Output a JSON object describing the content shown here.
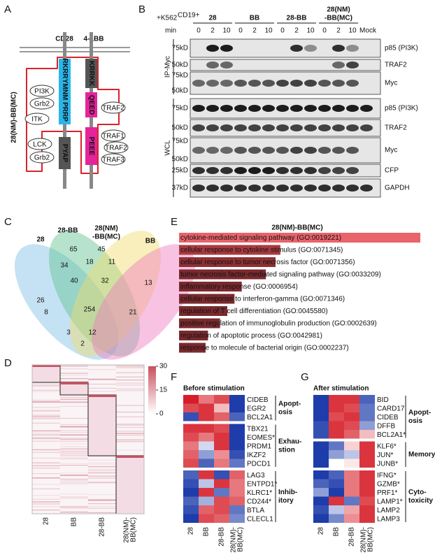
{
  "A": {
    "letter": "A",
    "receptors": [
      "CD28",
      "4-1BB"
    ],
    "construct": "28(NM)-BB(MC)",
    "cd28_motifs": [
      "RKRR",
      "YMNM",
      "PRRP",
      "PYAP"
    ],
    "bb_motifs": [
      "KRRKK",
      "QEED",
      "PEEE"
    ],
    "binders": [
      "PI3K",
      "Grb2",
      "ITK",
      "LCK",
      "Grb2",
      "TRAF2",
      "TRAF1",
      "TRAF2",
      "TRAF3"
    ]
  },
  "B": {
    "letter": "B",
    "stimulus": "+K562",
    "stimulus_sup": "CD19+",
    "groups": [
      [
        "28"
      ],
      [
        "BB"
      ],
      [
        "28-BB"
      ],
      [
        "28(NM)",
        "-BB(MC)"
      ]
    ],
    "time_label": "min",
    "times": [
      "0",
      "2",
      "10"
    ],
    "mock": "Mock",
    "sections": [
      "IP-Myc",
      "WCL"
    ],
    "rows": [
      {
        "markers": [
          "75kD"
        ],
        "label": "p85 (PI3K)"
      },
      {
        "markers": [
          "50kD"
        ],
        "label": "TRAF2"
      },
      {
        "markers": [
          "75kD",
          "50kD"
        ],
        "label": "Myc"
      },
      {
        "markers": [
          "75kD"
        ],
        "label": "p85 (PI3K)"
      },
      {
        "markers": [
          "50kD"
        ],
        "label": "TRAF2"
      },
      {
        "markers": [
          "75kD",
          "50kD"
        ],
        "label": "Myc"
      },
      {
        "markers": [
          "25kD"
        ],
        "label": "CFP"
      },
      {
        "markers": [
          "37kD"
        ],
        "label": "GAPDH"
      }
    ]
  },
  "C": {
    "letter": "C",
    "sets": [
      [
        "28"
      ],
      [
        "28-BB"
      ],
      [
        "28(NM)",
        "-BB(MC)"
      ],
      [
        "BB"
      ]
    ],
    "counts": [
      26,
      65,
      45,
      13,
      34,
      18,
      11,
      40,
      32,
      8,
      254,
      21,
      3,
      12,
      2
    ]
  },
  "D": {
    "letter": "D",
    "scale_ticks": [
      30,
      15,
      0
    ],
    "columns": [
      [
        "28"
      ],
      [
        "BB"
      ],
      [
        "28-BB"
      ],
      [
        "28(NM)-",
        "BB(MC)"
      ]
    ]
  },
  "E": {
    "letter": "E",
    "title": "28(NM)-BB(MC)",
    "terms": [
      "cytokine-mediated signaling pathway (GO:0019221)",
      "cellular response to cytokine stimulus (GO:0071345)",
      "cellular response to tumor necrosis factor (GO:0071356)",
      "tumor necrosis factor-mediated signaling pathway (GO:0033209)",
      "inflammatory response (GO:0006954)",
      "cellular response to interferon-gamma (GO:0071346)",
      "regulation of T cell differentiation (GO:0045580)",
      "positive regulation of immunoglobulin production (GO:0002639)",
      "regulation of apoptotic process (GO:0042981)",
      "response to molecule of bacterial origin (GO:0002237)"
    ],
    "bar_lengths": [
      100,
      42,
      40,
      36,
      26,
      23,
      20,
      17,
      12,
      11
    ]
  },
  "F": {
    "letter": "F",
    "title": "Before stimulation",
    "columns": [
      [
        "28"
      ],
      [
        "BB"
      ],
      [
        "28-BB"
      ],
      [
        "28(NM)-",
        "BB(MC)"
      ]
    ],
    "groups": [
      {
        "label": [
          "Apopt-",
          "osis"
        ],
        "genes": [
          "CIDEB",
          "EGR2",
          "BCL2A1"
        ],
        "values": [
          [
            1,
            0.6,
            0.8,
            -1
          ],
          [
            0.8,
            0.9,
            0.3,
            -1
          ],
          [
            -0.9,
            0.9,
            0.7,
            -0.8
          ]
        ]
      },
      {
        "label": [
          "Exhau-",
          "stion"
        ],
        "genes": [
          "TBX21",
          "EOMES*",
          "PRDM1",
          "IKZF2",
          "PDCD1"
        ],
        "values": [
          [
            0.9,
            0.9,
            0.8,
            -1
          ],
          [
            0.8,
            0.6,
            0.9,
            -1
          ],
          [
            0.6,
            -0.2,
            0.9,
            -1
          ],
          [
            0.7,
            -0.5,
            0.5,
            -0.9
          ],
          [
            0.8,
            -0.8,
            0.6,
            -0.7
          ]
        ]
      },
      {
        "label": [
          "Inhib-",
          "itory"
        ],
        "genes": [
          "LAG3",
          "ENTPD1*",
          "KLRC1*",
          "CD244*",
          "BTLA",
          "CLECL1"
        ],
        "values": [
          [
            -0.8,
            0.9,
            -0.9,
            0.7
          ],
          [
            -0.9,
            -0.3,
            0.9,
            0.6
          ],
          [
            -1,
            0.9,
            -0.7,
            0.6
          ],
          [
            -0.8,
            -0.4,
            0.8,
            0.7
          ],
          [
            -0.9,
            0.7,
            0.8,
            -0.7
          ],
          [
            -1,
            0.8,
            0.7,
            -0.6
          ]
        ]
      }
    ]
  },
  "G": {
    "letter": "G",
    "title": "After stimulation",
    "columns": [
      [
        "28"
      ],
      [
        "BB"
      ],
      [
        "28-BB"
      ],
      [
        "28(NM)-",
        "BB(MC)"
      ]
    ],
    "groups": [
      {
        "label": [
          "Apopt-",
          "osis"
        ],
        "genes": [
          "BID",
          "CARD17",
          "CIDEB",
          "DFFB",
          "BCL2A1*"
        ],
        "values": [
          [
            -1,
            0.9,
            0.9,
            -0.8
          ],
          [
            -1,
            0.9,
            0.8,
            -0.7
          ],
          [
            -1,
            0.8,
            0.9,
            -0.7
          ],
          [
            -0.9,
            0.9,
            0.8,
            -0.5
          ],
          [
            -0.9,
            0.9,
            0.7,
            0.3
          ]
        ]
      },
      {
        "label": [
          "Memory"
        ],
        "genes": [
          "KLF6*",
          "JUN*",
          "JUNB*"
        ],
        "values": [
          [
            -1,
            -0.7,
            0.2,
            0.9
          ],
          [
            -1,
            -0.5,
            -0.3,
            0.9
          ],
          [
            -1,
            0,
            0.1,
            0.9
          ]
        ]
      },
      {
        "label": [
          "Cyto-",
          "toxicity"
        ],
        "genes": [
          "IFNG*",
          "GZMB*",
          "PRF1*",
          "LAMP1*",
          "LAMP2",
          "LAMP3"
        ],
        "values": [
          [
            -1,
            -0.8,
            0.6,
            0.9
          ],
          [
            -0.8,
            -0.9,
            0.6,
            0.9
          ],
          [
            -0.5,
            -1,
            0.6,
            0.9
          ],
          [
            -1,
            0.9,
            -0.7,
            0.8
          ],
          [
            -0.9,
            -0.3,
            0.4,
            0.9
          ],
          [
            -1,
            -0.6,
            0.5,
            0.9
          ]
        ]
      }
    ]
  }
}
